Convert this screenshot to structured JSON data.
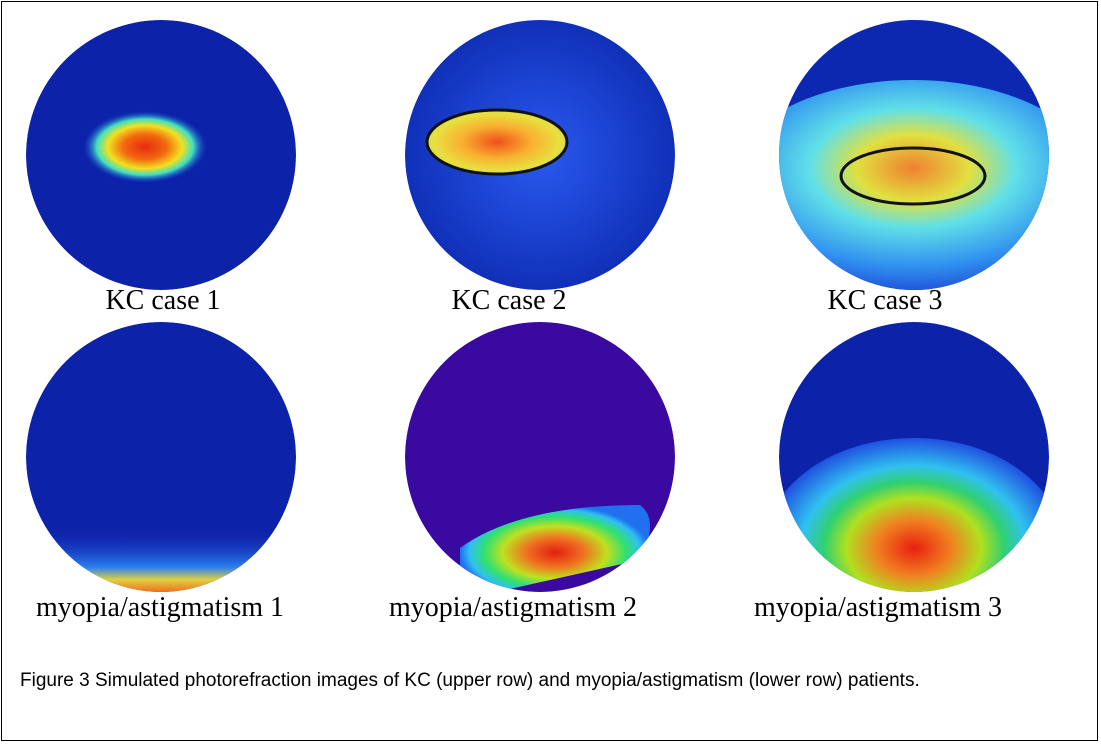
{
  "panels": [
    {
      "label": "KC case 1"
    },
    {
      "label": "KC case 2"
    },
    {
      "label": "KC case 3"
    },
    {
      "label": "myopia/astigmatism 1"
    },
    {
      "label": "myopia/astigmatism 2"
    },
    {
      "label": "myopia/astigmatism 3"
    }
  ],
  "caption": "Figure 3 Simulated photorefraction images of KC (upper row) and myopia/astigmatism (lower row) patients."
}
